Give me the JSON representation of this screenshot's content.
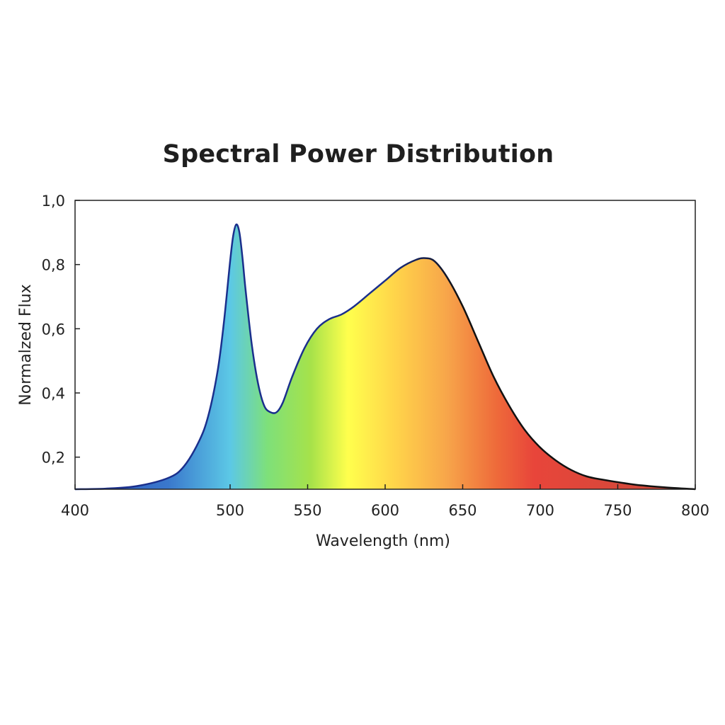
{
  "chart_data": {
    "type": "area",
    "title": "Spectral Power Distribution",
    "xlabel": "Wavelength (nm)",
    "ylabel": "Normalzed Flux",
    "xlim": [
      400,
      800
    ],
    "ylim": [
      0.1,
      1.0
    ],
    "x_ticks": [
      400,
      500,
      550,
      600,
      650,
      700,
      750,
      800
    ],
    "x_tick_labels": [
      "400",
      "500",
      "550",
      "600",
      "650",
      "700",
      "750",
      "800"
    ],
    "y_ticks": [
      0.2,
      0.4,
      0.6,
      0.8,
      1.0
    ],
    "y_tick_labels": [
      "0,2",
      "0,4",
      "0,6",
      "0,8",
      "1,0"
    ],
    "grid": false,
    "series": [
      {
        "x": [
          400,
          420,
          440,
          460,
          470,
          480,
          486,
          492,
          496,
          500,
          502,
          504,
          506,
          508,
          510,
          514,
          518,
          522,
          526,
          530,
          534,
          540,
          548,
          556,
          564,
          572,
          580,
          590,
          600,
          610,
          620,
          626,
          632,
          640,
          650,
          660,
          670,
          680,
          690,
          700,
          710,
          720,
          730,
          740,
          760,
          780,
          800
        ],
        "y": [
          0.1,
          0.102,
          0.11,
          0.135,
          0.17,
          0.25,
          0.33,
          0.47,
          0.62,
          0.81,
          0.89,
          0.925,
          0.9,
          0.82,
          0.72,
          0.55,
          0.43,
          0.36,
          0.34,
          0.34,
          0.37,
          0.45,
          0.54,
          0.6,
          0.63,
          0.645,
          0.67,
          0.71,
          0.75,
          0.79,
          0.815,
          0.82,
          0.81,
          0.76,
          0.67,
          0.56,
          0.45,
          0.36,
          0.285,
          0.23,
          0.19,
          0.16,
          0.14,
          0.13,
          0.115,
          0.106,
          0.1
        ]
      }
    ],
    "colors": {
      "line_blue": "#1a2f8c",
      "line_black": "#111111",
      "gradient": [
        "#2a4eb8",
        "#3a78cc",
        "#5cc8e6",
        "#7ee07a",
        "#a6e24a",
        "#ffff4d",
        "#ffd24a",
        "#f7a54a",
        "#ee6a3a",
        "#e8453a",
        "#c94a3a"
      ]
    }
  }
}
